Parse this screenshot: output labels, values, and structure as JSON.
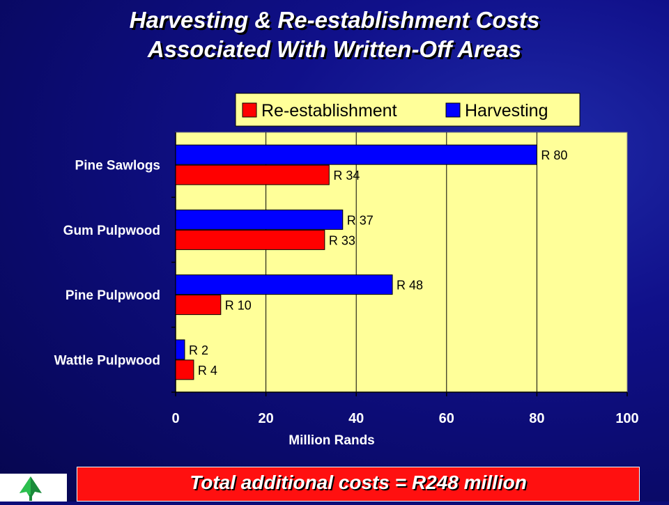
{
  "title_line1": "Harvesting & Re-establishment Costs",
  "title_line2": "Associated With Written-Off Areas",
  "footer": {
    "total": "Total additional costs = R248 million"
  },
  "logo": {
    "icon": "tree-logo-icon"
  },
  "colors": {
    "harvesting": "#0000ff",
    "reestablishment": "#ff0000",
    "plot_bg": "#ffff99",
    "background": "#0c0c78",
    "footer_bg": "#ff1010"
  },
  "chart_data": {
    "type": "bar",
    "orientation": "horizontal",
    "categories": [
      "Pine Sawlogs",
      "Gum Pulpwood",
      "Pine Pulpwood",
      "Wattle Pulpwood"
    ],
    "series": [
      {
        "name": "Harvesting",
        "values": [
          80,
          37,
          48,
          2
        ],
        "labels": [
          "R 80",
          "R 37",
          "R 48",
          "R 2"
        ]
      },
      {
        "name": "Re-establishment",
        "values": [
          34,
          33,
          10,
          4
        ],
        "labels": [
          "R 34",
          "R 33",
          "R 10",
          "R 4"
        ]
      }
    ],
    "legend_order": [
      "Re-establishment",
      "Harvesting"
    ],
    "legend_position": "top-right",
    "xlabel": "Million Rands",
    "xlim": [
      0,
      100
    ],
    "xticks": [
      0,
      20,
      40,
      60,
      80,
      100
    ],
    "grid": true
  }
}
